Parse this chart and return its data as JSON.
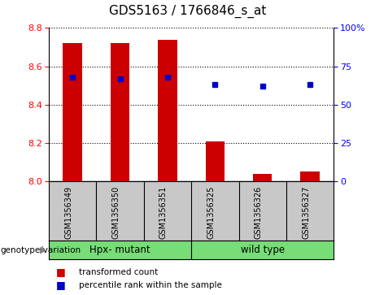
{
  "title": "GDS5163 / 1766846_s_at",
  "samples": [
    "GSM1356349",
    "GSM1356350",
    "GSM1356351",
    "GSM1356325",
    "GSM1356326",
    "GSM1356327"
  ],
  "groups": [
    {
      "label": "Hpx- mutant",
      "indices": [
        0,
        1,
        2
      ],
      "color": "#77DD77"
    },
    {
      "label": "wild type",
      "indices": [
        3,
        4,
        5
      ],
      "color": "#77DD77"
    }
  ],
  "transformed_count": [
    8.72,
    8.72,
    8.74,
    8.21,
    8.04,
    8.05
  ],
  "percentile_rank": [
    68,
    67,
    68,
    63,
    62,
    63
  ],
  "ylim_left": [
    8.0,
    8.8
  ],
  "ylim_right": [
    0,
    100
  ],
  "yticks_left": [
    8.0,
    8.2,
    8.4,
    8.6,
    8.8
  ],
  "yticks_right": [
    0,
    25,
    50,
    75,
    100
  ],
  "bar_color": "#CC0000",
  "dot_color": "#0000CC",
  "bar_baseline": 8.0,
  "label_bg": "#C8C8C8",
  "title_fontsize": 11,
  "tick_fontsize": 8,
  "label_fontsize": 7,
  "bar_width": 0.4
}
